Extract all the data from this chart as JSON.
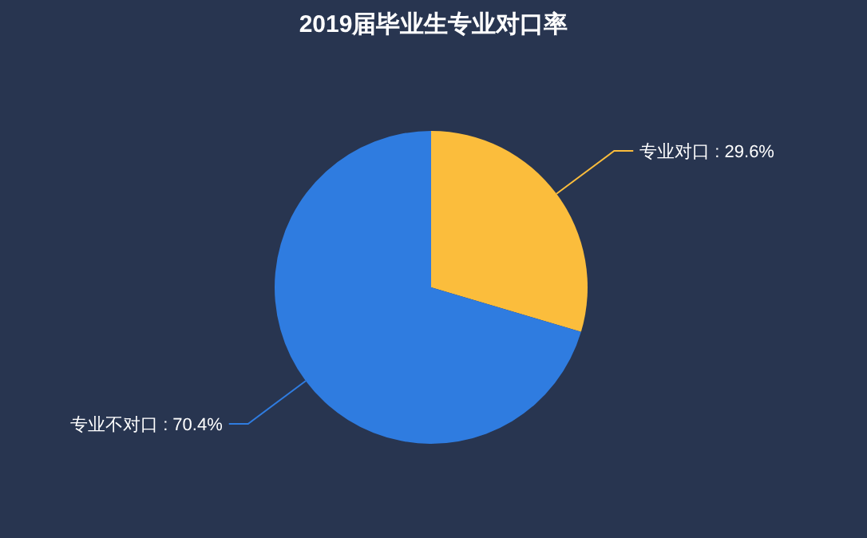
{
  "chart_data": {
    "type": "pie",
    "title": "2019届毕业生专业对口率",
    "categories": [
      "专业对口",
      "专业不对口"
    ],
    "values": [
      29.6,
      70.4
    ],
    "value_labels": [
      "29.6%",
      "70.4%"
    ],
    "colors": [
      "#fbbd3c",
      "#2f7ce0"
    ]
  }
}
